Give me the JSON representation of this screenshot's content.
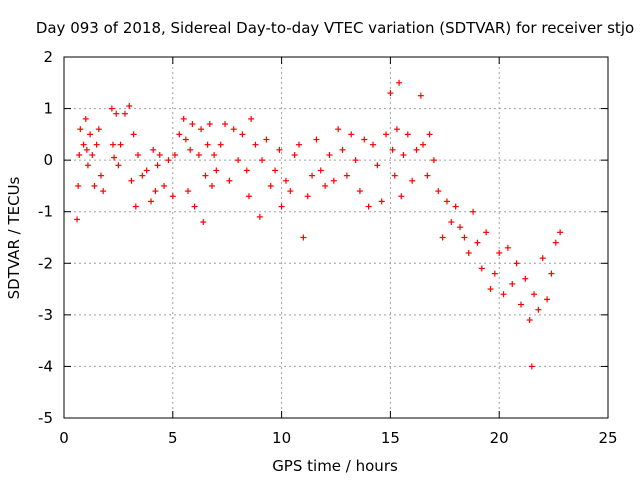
{
  "chart_data": {
    "type": "scatter",
    "title": "Day 093 of 2018, Sidereal Day-to-day VTEC variation (SDTVAR) for receiver stjo",
    "xlabel": "GPS time / hours",
    "ylabel": "SDTVAR / TECUs",
    "xlim": [
      0,
      25
    ],
    "ylim": [
      -5,
      2
    ],
    "xticks": [
      "0",
      "5",
      "10",
      "15",
      "20",
      "25"
    ],
    "yticks": [
      "2",
      "1",
      "0",
      "-1",
      "-2",
      "-3",
      "-4",
      "-5"
    ],
    "grid": true,
    "marker": "+",
    "color": "#ff0000",
    "series": [
      {
        "name": "SDTVAR",
        "x": [
          0.6,
          0.65,
          0.7,
          0.75,
          0.9,
          1.0,
          1.05,
          1.1,
          1.2,
          1.3,
          1.4,
          1.5,
          1.6,
          1.7,
          1.8,
          2.2,
          2.25,
          2.3,
          2.4,
          2.5,
          2.6,
          2.8,
          3.0,
          3.1,
          3.2,
          3.3,
          3.4,
          3.6,
          3.8,
          4.0,
          4.1,
          4.2,
          4.3,
          4.4,
          4.6,
          4.8,
          5.0,
          5.1,
          5.3,
          5.5,
          5.6,
          5.7,
          5.8,
          5.9,
          6.0,
          6.2,
          6.3,
          6.4,
          6.5,
          6.6,
          6.7,
          6.8,
          6.9,
          7.0,
          7.2,
          7.4,
          7.6,
          7.8,
          8.0,
          8.2,
          8.4,
          8.5,
          8.6,
          8.8,
          9.0,
          9.1,
          9.3,
          9.5,
          9.7,
          9.9,
          10.0,
          10.2,
          10.4,
          10.6,
          10.8,
          11.0,
          11.2,
          11.4,
          11.6,
          11.8,
          12.0,
          12.2,
          12.4,
          12.6,
          12.8,
          13.0,
          13.2,
          13.4,
          13.6,
          13.8,
          14.0,
          14.2,
          14.4,
          14.6,
          14.8,
          15.0,
          15.1,
          15.2,
          15.3,
          15.4,
          15.5,
          15.6,
          15.8,
          16.0,
          16.2,
          16.4,
          16.5,
          16.7,
          16.8,
          17.0,
          17.2,
          17.4,
          17.6,
          17.8,
          18.0,
          18.2,
          18.4,
          18.6,
          18.8,
          19.0,
          19.2,
          19.4,
          19.6,
          19.8,
          20.0,
          20.2,
          20.4,
          20.6,
          20.8,
          21.0,
          21.2,
          21.4,
          21.5,
          21.6,
          21.8,
          22.0,
          22.2,
          22.4,
          22.6,
          22.8
        ],
        "y": [
          -1.15,
          -0.5,
          0.1,
          0.6,
          0.3,
          0.8,
          0.2,
          -0.1,
          0.5,
          0.1,
          -0.5,
          0.3,
          0.6,
          -0.3,
          -0.6,
          1.0,
          0.3,
          0.05,
          0.9,
          -0.1,
          0.3,
          0.9,
          1.05,
          -0.4,
          0.5,
          -0.9,
          0.1,
          -0.3,
          -0.2,
          -0.8,
          0.2,
          -0.6,
          -0.1,
          0.1,
          -0.5,
          0.0,
          -0.7,
          0.1,
          0.5,
          0.8,
          0.4,
          -0.6,
          0.2,
          0.7,
          -0.9,
          0.1,
          0.6,
          -1.2,
          -0.3,
          0.3,
          0.7,
          -0.5,
          0.1,
          -0.2,
          0.3,
          0.7,
          -0.4,
          0.6,
          0.0,
          0.5,
          -0.2,
          -0.7,
          0.8,
          0.3,
          -1.1,
          0.0,
          0.4,
          -0.5,
          -0.2,
          0.2,
          -0.9,
          -0.4,
          -0.6,
          0.1,
          0.3,
          -1.5,
          -0.7,
          -0.3,
          0.4,
          -0.2,
          -0.5,
          0.1,
          -0.4,
          0.6,
          0.2,
          -0.3,
          0.5,
          0.0,
          -0.6,
          0.4,
          -0.9,
          0.3,
          -0.1,
          -0.8,
          0.5,
          1.3,
          0.2,
          -0.3,
          0.6,
          1.5,
          -0.7,
          0.1,
          0.5,
          -0.4,
          0.2,
          1.25,
          0.3,
          -0.3,
          0.5,
          0.0,
          -0.6,
          -1.5,
          -0.8,
          -1.2,
          -0.9,
          -1.3,
          -1.5,
          -1.8,
          -1.0,
          -1.6,
          -2.1,
          -1.4,
          -2.5,
          -2.2,
          -1.8,
          -2.6,
          -1.7,
          -2.4,
          -2.0,
          -2.8,
          -2.3,
          -3.1,
          -4.0,
          -2.6,
          -2.9,
          -1.9,
          -2.7,
          -2.2,
          -1.6,
          -1.4
        ]
      }
    ]
  }
}
